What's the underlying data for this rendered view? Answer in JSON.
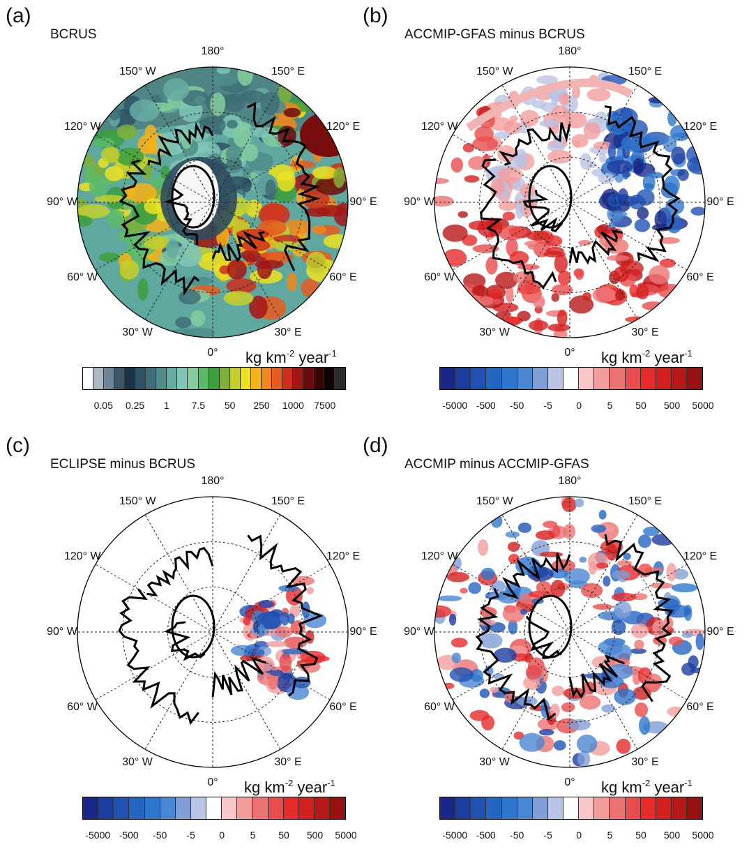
{
  "units_parts": {
    "pre": "kg km",
    "sup": "-2",
    "post": " year",
    "sup2": "-1"
  },
  "palettes": {
    "absolute": [
      "#ffffff",
      "#a9b8c4",
      "#6f8696",
      "#3d576a",
      "#1d3244",
      "#2f5366",
      "#3f7077",
      "#4f8d8a",
      "#66aca2",
      "#7fc6b7",
      "#84cd9e",
      "#5dbb68",
      "#3c9f3d",
      "#7fb038",
      "#c2cf2e",
      "#ece21f",
      "#f4b216",
      "#f0871c",
      "#e85a1e",
      "#cf2f1c",
      "#a31616",
      "#6d0c0c",
      "#3a0505",
      "#120303",
      "#2b2b2b"
    ],
    "difference": [
      "#17288a",
      "#1b3da0",
      "#1f52b4",
      "#2565c2",
      "#2e76cb",
      "#4a86d2",
      "#7f9fd6",
      "#b9c3e4",
      "#ffffff",
      "#f8c7c7",
      "#f39c9c",
      "#ed7373",
      "#e94c4c",
      "#e72a2a",
      "#d51f1f",
      "#b81818",
      "#991212"
    ]
  },
  "panels": [
    {
      "letter": "(a)",
      "title": "BCRUS",
      "field": "absolute",
      "colorbar_ticks": [
        "0.05",
        "0.25",
        "1",
        "7.5",
        "50",
        "250",
        "1000",
        "7500"
      ]
    },
    {
      "letter": "(b)",
      "title": "ACCMIP-GFAS minus BCRUS",
      "field": "difference",
      "colorbar_ticks": [
        "-5000",
        "-500",
        "-50",
        "-5",
        "0",
        "5",
        "50",
        "500",
        "5000"
      ]
    },
    {
      "letter": "(c)",
      "title": "ECLIPSE minus BCRUS",
      "field": "difference",
      "colorbar_ticks": [
        "-5000",
        "-500",
        "-50",
        "-5",
        "0",
        "5",
        "50",
        "500",
        "5000"
      ]
    },
    {
      "letter": "(d)",
      "title": "ACCMIP minus ACCMIP-GFAS",
      "field": "difference",
      "colorbar_ticks": [
        "-5000",
        "-500",
        "-50",
        "-5",
        "0",
        "5",
        "50",
        "500",
        "5000"
      ]
    }
  ],
  "longitude_labels": [
    "180°",
    "150° E",
    "120° E",
    "90° E",
    "60° E",
    "30° E",
    "0°",
    "30° W",
    "60° W",
    "90° W",
    "120° W",
    "150° W"
  ]
}
